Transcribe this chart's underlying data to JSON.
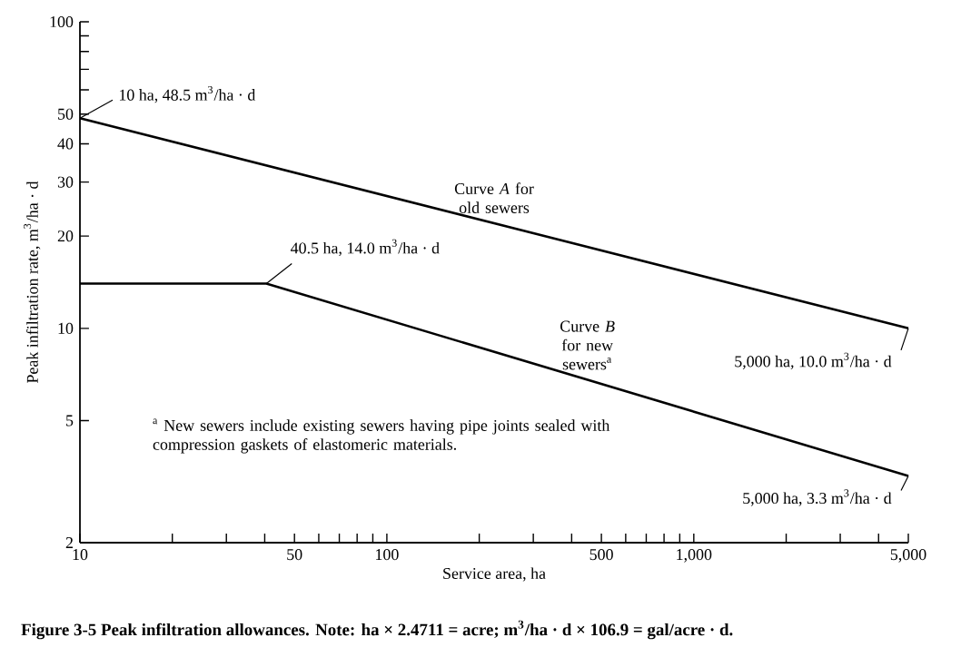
{
  "chart_data": {
    "type": "line",
    "log": "xy",
    "xlabel": "Service area, ha",
    "ylabel": "Peak infiltration rate, m$^{3}$/ha · d",
    "xlim": [
      10,
      5000
    ],
    "ylim": [
      2,
      100
    ],
    "xticks": [
      10,
      {
        "value": 20,
        "label": null
      },
      {
        "value": 30,
        "label": null
      },
      {
        "value": 40,
        "label": null
      },
      50,
      {
        "value": 60,
        "label": null
      },
      {
        "value": 70,
        "label": null
      },
      {
        "value": 80,
        "label": null
      },
      {
        "value": 90,
        "label": null
      },
      100,
      {
        "value": 200,
        "label": null
      },
      {
        "value": 300,
        "label": null
      },
      {
        "value": 400,
        "label": null
      },
      500,
      {
        "value": 600,
        "label": null
      },
      {
        "value": 700,
        "label": null
      },
      {
        "value": 800,
        "label": null
      },
      {
        "value": 900,
        "label": null
      },
      {
        "value": 1000,
        "label": "1,000"
      },
      {
        "value": 2000,
        "label": null
      },
      {
        "value": 3000,
        "label": null
      },
      {
        "value": 4000,
        "label": null
      },
      {
        "value": 5000,
        "label": "5,000"
      }
    ],
    "yticks": [
      2,
      5,
      10,
      20,
      30,
      40,
      50,
      {
        "value": 60,
        "label": null
      },
      {
        "value": 70,
        "label": null
      },
      {
        "value": 80,
        "label": null
      },
      {
        "value": 90,
        "label": null
      },
      100
    ],
    "series": [
      {
        "name": "Curve *A* for old sewers",
        "color": "#000000",
        "x": [
          10,
          5000
        ],
        "values": [
          48.5,
          10.0
        ]
      },
      {
        "name": "Curve *B* for new sewers$^{a}$",
        "color": "#000000",
        "x": [
          10,
          40.5,
          5000
        ],
        "values": [
          14.0,
          14.0,
          3.3
        ]
      }
    ],
    "annotations": [
      {
        "text": "10 ha, 48.5 m$^{3}$/ha · d",
        "x": 10,
        "y": 48.5
      },
      {
        "text": "40.5 ha, 14.0 m$^{3}$/ha · d",
        "x": 40.5,
        "y": 14.0
      },
      {
        "text": "5,000 ha, 10.0 m$^{3}$/ha · d",
        "x": 5000,
        "y": 10.0
      },
      {
        "text": "5,000 ha, 3.3 m$^{3}$/ha · d",
        "x": 5000,
        "y": 3.3
      },
      "$^{a}$ New sewers include existing sewers having pipe joints sealed with compression gaskets of elastomeric materials.",
      "Figure 3-5 Peak infiltration allowances. Note: ha × 2.4711 = acre; m$^{3}$/ha · d × 106.9 = gal/acre · d."
    ]
  }
}
